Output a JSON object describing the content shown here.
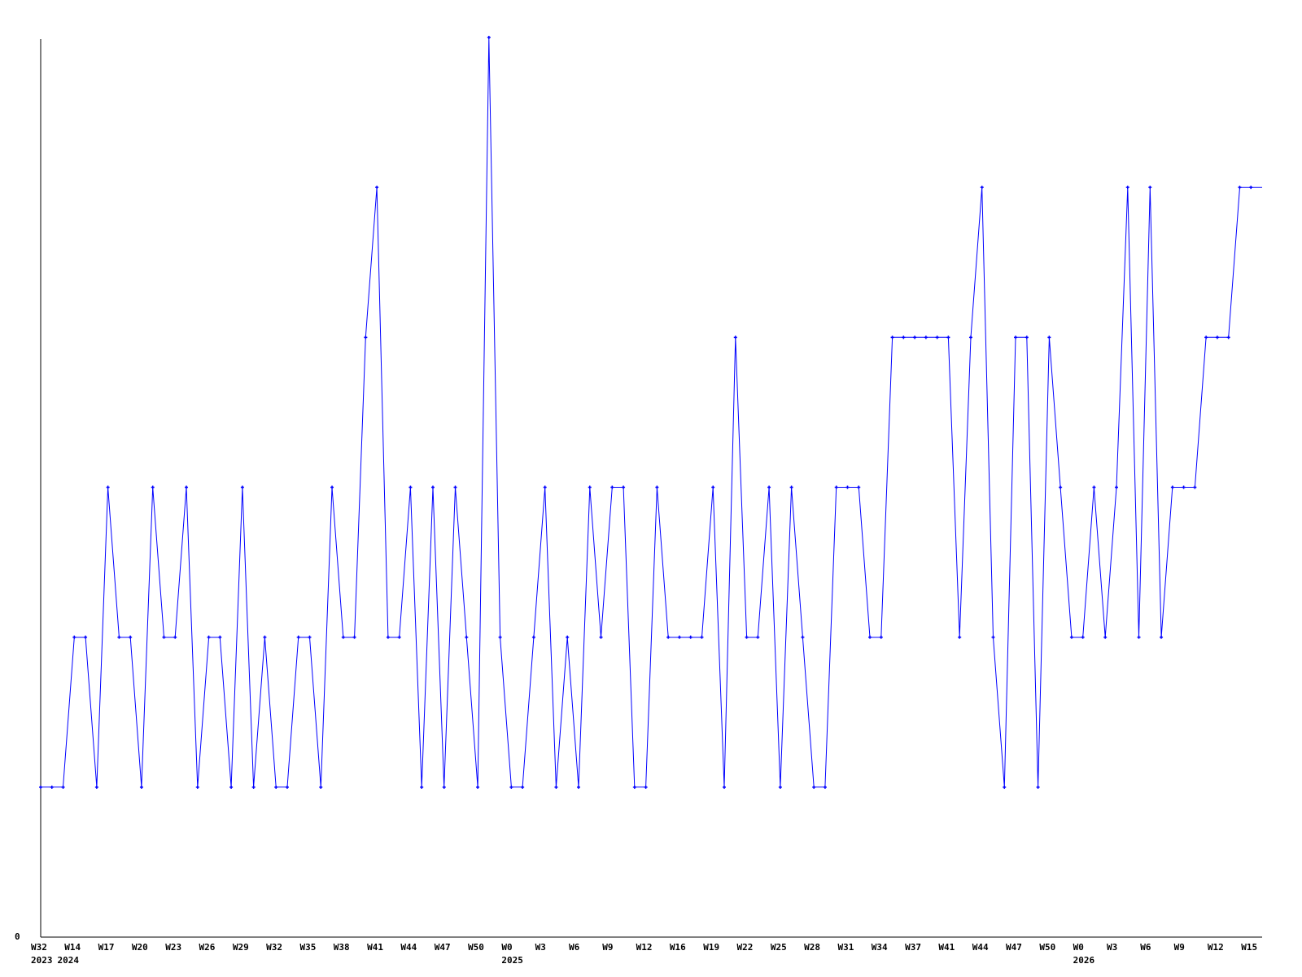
{
  "chart_data": {
    "type": "line",
    "title": "",
    "xlabel": "",
    "ylabel": "",
    "ylim": [
      0,
      6
    ],
    "y_tick_labels": [
      "0"
    ],
    "grid": false,
    "legend": "none",
    "series_color": "#0000ff",
    "axis_color": "#000000",
    "x_tick_labels": [
      "W32",
      "W14",
      "W17",
      "W20",
      "W23",
      "W26",
      "W29",
      "W32",
      "W35",
      "W38",
      "W41",
      "W44",
      "W47",
      "W50",
      "W0",
      "W3",
      "W6",
      "W9",
      "W12",
      "W16",
      "W19",
      "W22",
      "W25",
      "W28",
      "W31",
      "W34",
      "W37",
      "W41",
      "W44",
      "W47",
      "W50",
      "W0",
      "W3",
      "W6",
      "W9",
      "W12",
      "W15"
    ],
    "x_tick_every_n_points": 3,
    "year_labels": [
      {
        "label": "2023",
        "point_index": 0
      },
      {
        "label": "2024",
        "point_index": 1
      },
      {
        "label": "2025",
        "point_index": 42
      },
      {
        "label": "2026",
        "point_index": 93
      }
    ],
    "values": [
      1,
      1,
      1,
      2,
      2,
      1,
      3,
      2,
      2,
      1,
      3,
      2,
      2,
      3,
      1,
      2,
      2,
      1,
      3,
      1,
      2,
      1,
      1,
      2,
      2,
      1,
      3,
      2,
      2,
      4,
      5,
      2,
      2,
      3,
      1,
      3,
      1,
      3,
      2,
      1,
      6,
      2,
      1,
      1,
      2,
      3,
      1,
      2,
      1,
      3,
      2,
      3,
      3,
      1,
      1,
      3,
      2,
      2,
      2,
      2,
      3,
      1,
      4,
      2,
      2,
      3,
      1,
      3,
      2,
      1,
      1,
      3,
      3,
      3,
      2,
      2,
      4,
      4,
      4,
      4,
      4,
      4,
      2,
      4,
      5,
      2,
      1,
      4,
      4,
      1,
      4,
      3,
      2,
      2,
      3,
      2,
      3,
      5,
      2,
      5,
      2,
      3,
      3,
      3,
      4,
      4,
      4,
      5,
      5,
      5
    ]
  }
}
